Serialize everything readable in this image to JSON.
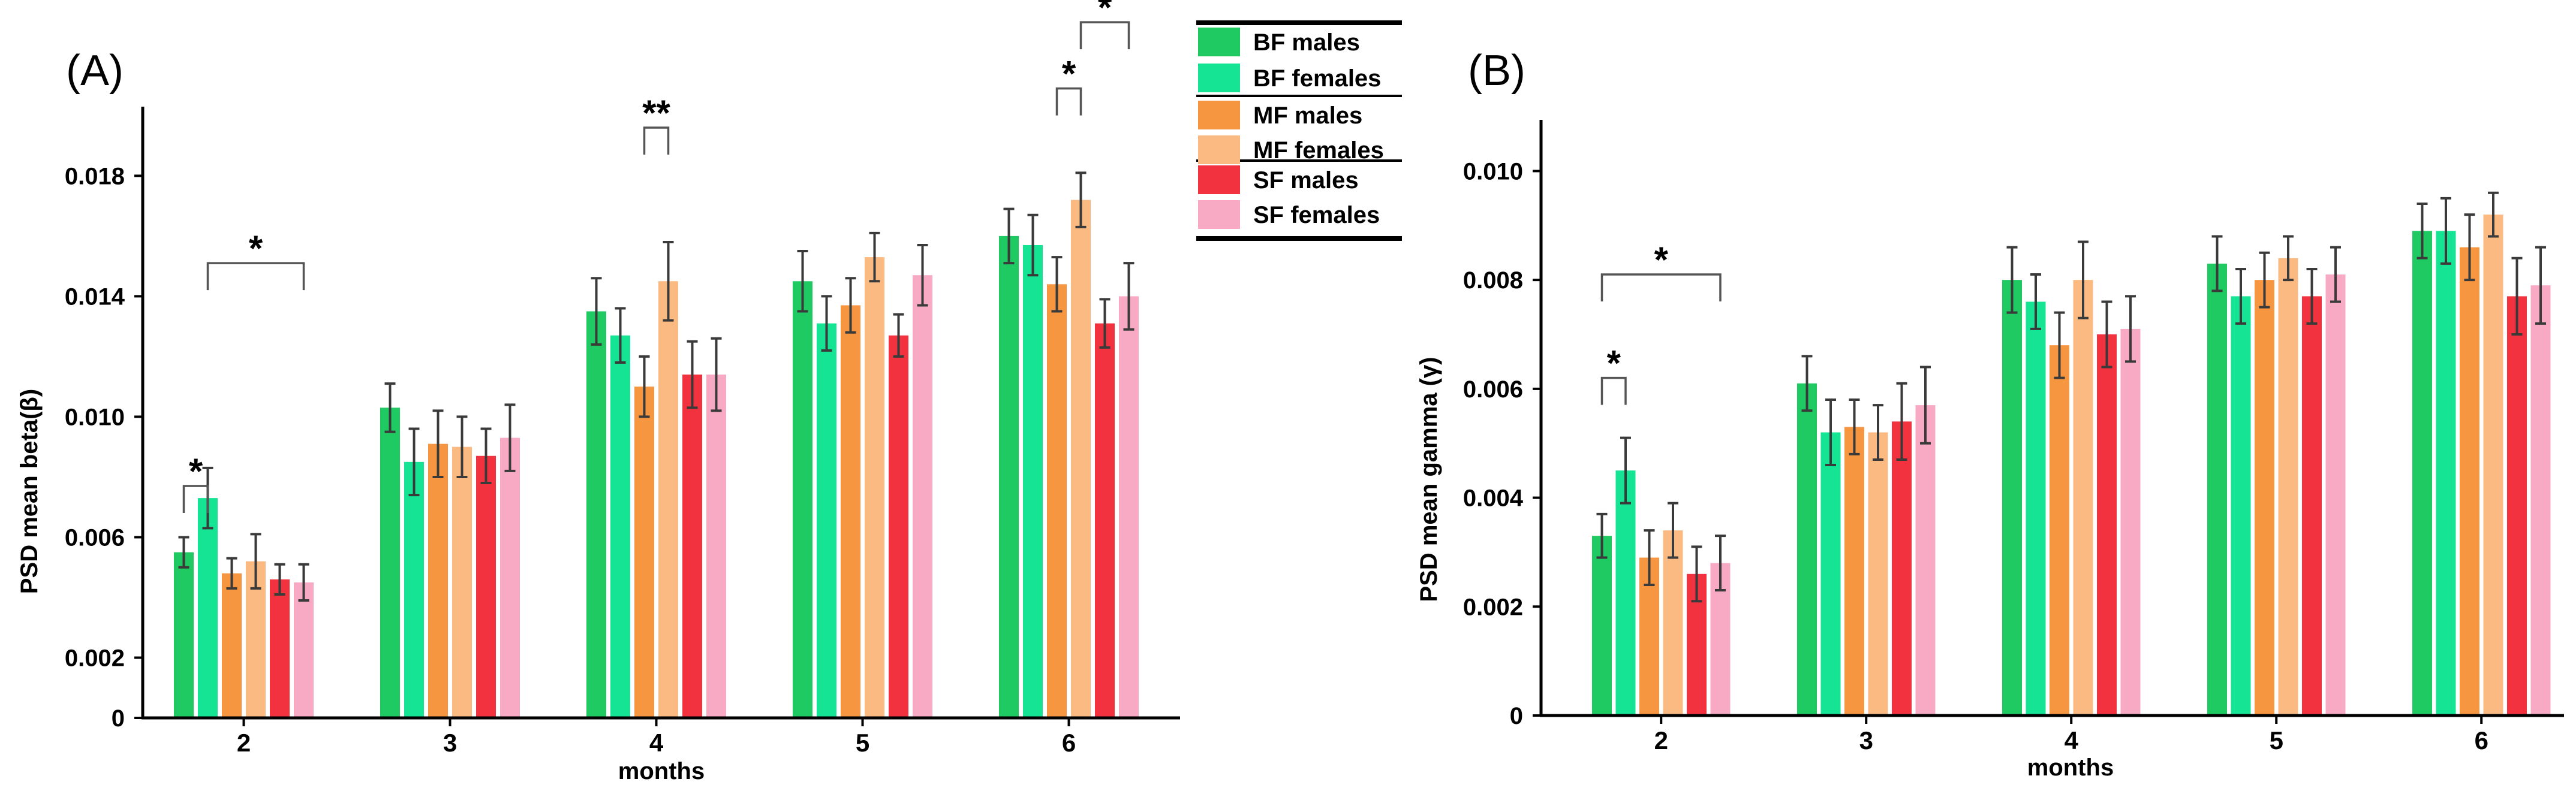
{
  "colors": {
    "BF males": "#1fca62",
    "BF females": "#14e493",
    "MF males": "#f79641",
    "MF females": "#fcba83",
    "SF males": "#f2333f",
    "SF females": "#f8a9c4"
  },
  "legend": [
    "BF males",
    "BF females",
    "MF males",
    "MF females",
    "SF males",
    "SF females"
  ],
  "chart_data": [
    {
      "type": "bar",
      "panel_label": "(A)",
      "xlabel": "months",
      "ylabel": "PSD mean beta(β)",
      "categories": [
        "2",
        "3",
        "4",
        "5",
        "6"
      ],
      "ylim": [
        0,
        0.0195
      ],
      "yticks": [
        0,
        0.002,
        0.006,
        0.01,
        0.014,
        0.018
      ],
      "ytick_labels": [
        "0",
        "0.002",
        "0.006",
        "0.010",
        "0.014",
        "0.018"
      ],
      "series": [
        {
          "name": "BF males",
          "values": [
            0.0055,
            0.0103,
            0.0135,
            0.0145,
            0.016
          ],
          "errors": [
            0.0005,
            0.0008,
            0.0011,
            0.001,
            0.0009
          ]
        },
        {
          "name": "BF females",
          "values": [
            0.0073,
            0.0085,
            0.0127,
            0.0131,
            0.0157
          ],
          "errors": [
            0.001,
            0.0011,
            0.0009,
            0.0009,
            0.001
          ]
        },
        {
          "name": "MF males",
          "values": [
            0.0048,
            0.0091,
            0.011,
            0.0137,
            0.0144
          ],
          "errors": [
            0.0005,
            0.0011,
            0.001,
            0.0009,
            0.0009
          ]
        },
        {
          "name": "MF females",
          "values": [
            0.0052,
            0.009,
            0.0145,
            0.0153,
            0.0172
          ],
          "errors": [
            0.0009,
            0.001,
            0.0013,
            0.0008,
            0.0009
          ]
        },
        {
          "name": "SF males",
          "values": [
            0.0046,
            0.0087,
            0.0114,
            0.0127,
            0.0131
          ],
          "errors": [
            0.0005,
            0.0009,
            0.0011,
            0.0007,
            0.0008
          ]
        },
        {
          "name": "SF females",
          "values": [
            0.0045,
            0.0093,
            0.0114,
            0.0147,
            0.014
          ],
          "errors": [
            0.0006,
            0.0011,
            0.0012,
            0.001,
            0.0011
          ]
        }
      ],
      "significance": [
        {
          "label": "*",
          "from": [
            0,
            0
          ],
          "to": [
            0,
            1
          ],
          "y": 0.0077
        },
        {
          "label": "*",
          "from": [
            0,
            1
          ],
          "to": [
            0,
            5
          ],
          "y": 0.0151
        },
        {
          "label": "**",
          "from": [
            2,
            2
          ],
          "to": [
            2,
            3
          ],
          "y": 0.0196
        },
        {
          "label": "*",
          "from": [
            4,
            2
          ],
          "to": [
            4,
            3
          ],
          "y": 0.0209
        },
        {
          "label": "*",
          "from": [
            4,
            3
          ],
          "to": [
            4,
            5
          ],
          "y": 0.0231
        }
      ]
    },
    {
      "type": "bar",
      "panel_label": "(B)",
      "xlabel": "months",
      "ylabel": "PSD mean gamma (γ)",
      "categories": [
        "2",
        "3",
        "4",
        "5",
        "6"
      ],
      "ylim": [
        0,
        0.0105
      ],
      "yticks": [
        0,
        0.002,
        0.004,
        0.006,
        0.008,
        0.01
      ],
      "ytick_labels": [
        "0",
        "0.002",
        "0.004",
        "0.006",
        "0.008",
        "0.010"
      ],
      "series": [
        {
          "name": "BF males",
          "values": [
            0.0033,
            0.0061,
            0.008,
            0.0083,
            0.0089
          ],
          "errors": [
            0.0004,
            0.0005,
            0.0006,
            0.0005,
            0.0005
          ]
        },
        {
          "name": "BF females",
          "values": [
            0.0045,
            0.0052,
            0.0076,
            0.0077,
            0.0089
          ],
          "errors": [
            0.0006,
            0.0006,
            0.0005,
            0.0005,
            0.0006
          ]
        },
        {
          "name": "MF males",
          "values": [
            0.0029,
            0.0053,
            0.0068,
            0.008,
            0.0086
          ],
          "errors": [
            0.0005,
            0.0005,
            0.0006,
            0.0005,
            0.0006
          ]
        },
        {
          "name": "MF females",
          "values": [
            0.0034,
            0.0052,
            0.008,
            0.0084,
            0.0092
          ],
          "errors": [
            0.0005,
            0.0005,
            0.0007,
            0.0004,
            0.0004
          ]
        },
        {
          "name": "SF males",
          "values": [
            0.0026,
            0.0054,
            0.007,
            0.0077,
            0.0077
          ],
          "errors": [
            0.0005,
            0.0007,
            0.0006,
            0.0005,
            0.0007
          ]
        },
        {
          "name": "SF females",
          "values": [
            0.0028,
            0.0057,
            0.0071,
            0.0081,
            0.0079
          ],
          "errors": [
            0.0005,
            0.0007,
            0.0006,
            0.0005,
            0.0007
          ]
        }
      ],
      "significance": [
        {
          "label": "*",
          "from": [
            0,
            0
          ],
          "to": [
            0,
            1
          ],
          "y": 0.0062
        },
        {
          "label": "*",
          "from": [
            0,
            0
          ],
          "to": [
            0,
            5
          ],
          "y": 0.0081
        }
      ]
    }
  ]
}
